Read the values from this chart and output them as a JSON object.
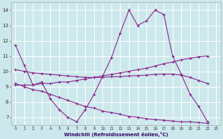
{
  "xlabel": "Windchill (Refroidissement éolien,°C)",
  "background_color": "#cce8ec",
  "grid_color": "#ffffff",
  "line_color": "#882288",
  "xlim": [
    -0.5,
    23.5
  ],
  "ylim": [
    6.5,
    14.5
  ],
  "yticks": [
    7,
    8,
    9,
    10,
    11,
    12,
    13,
    14
  ],
  "xticks": [
    0,
    1,
    2,
    3,
    4,
    5,
    6,
    7,
    8,
    9,
    10,
    11,
    12,
    13,
    14,
    15,
    16,
    17,
    18,
    19,
    20,
    21,
    22,
    23
  ],
  "series": [
    [
      11.7,
      10.4,
      9.1,
      9.3,
      8.2,
      7.5,
      7.0,
      6.7,
      7.5,
      8.5,
      9.7,
      10.9,
      12.5,
      14.0,
      13.0,
      13.3,
      14.0,
      13.7,
      11.0,
      9.8,
      8.5,
      7.7,
      6.7
    ],
    [
      9.1,
      9.1,
      9.1,
      9.2,
      9.2,
      9.3,
      9.3,
      9.4,
      9.5,
      9.6,
      9.7,
      9.8,
      9.9,
      10.0,
      10.1,
      10.2,
      10.35,
      10.5,
      10.6,
      10.75,
      10.85,
      10.95,
      11.0
    ],
    [
      10.1,
      10.0,
      9.9,
      9.85,
      9.8,
      9.75,
      9.7,
      9.65,
      9.6,
      9.6,
      9.6,
      9.65,
      9.65,
      9.7,
      9.72,
      9.75,
      9.8,
      9.82,
      9.82,
      9.75,
      9.6,
      9.4,
      9.2
    ],
    [
      9.2,
      9.0,
      8.8,
      8.7,
      8.5,
      8.3,
      8.1,
      7.9,
      7.7,
      7.6,
      7.4,
      7.3,
      7.2,
      7.05,
      7.0,
      6.9,
      6.85,
      6.8,
      6.75,
      6.7,
      6.7,
      6.65,
      6.6
    ]
  ]
}
